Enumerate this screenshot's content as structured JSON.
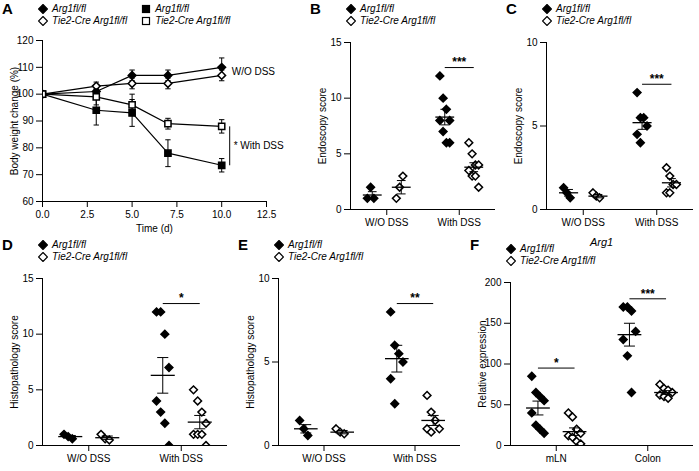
{
  "chart_data": [
    {
      "panel": "A",
      "type": "line",
      "xlabel": "Time (d)",
      "ylabel": "Body weight change (%)",
      "x": [
        0,
        3,
        5,
        7,
        10
      ],
      "xlim": [
        0,
        12.5
      ],
      "xticks": [
        {
          "value": 0,
          "label": "0.0"
        },
        2.5,
        {
          "value": 5,
          "label": "5.0"
        },
        7.5,
        {
          "value": 10,
          "label": "10.0"
        },
        12.5
      ],
      "ylim": [
        60,
        120
      ],
      "yticks": [
        60,
        70,
        80,
        90,
        100,
        110,
        120
      ],
      "series": [
        {
          "name": "Arg1fl/fl",
          "color": "#000000",
          "marker": "diamond",
          "values": [
            100,
            101,
            107,
            107,
            110
          ],
          "errors": [
            0,
            1.5,
            2,
            2,
            3.5
          ]
        },
        {
          "name": "Tie2-Cre Arg1fl/fl",
          "color": "#000000",
          "marker": "diamond-open",
          "values": [
            100,
            103,
            104,
            104,
            107
          ],
          "errors": [
            0,
            1.5,
            2,
            2,
            2
          ]
        },
        {
          "name": "Arg1fl/fl",
          "color": "#000000",
          "marker": "square",
          "values": [
            100,
            94,
            93,
            78,
            73.5
          ],
          "errors": [
            0,
            5.5,
            5,
            5,
            2.5
          ]
        },
        {
          "name": "Tie2-Cre Arg1fl/fl",
          "color": "#000000",
          "marker": "square-open",
          "values": [
            100,
            99,
            96,
            89,
            88
          ],
          "errors": [
            0,
            3,
            4,
            2,
            2.5
          ]
        }
      ],
      "annotations": [
        "W/O DSS",
        "* With DSS"
      ]
    },
    {
      "panel": "B",
      "type": "scatter",
      "ylabel": "Endoscopy score",
      "categories": [
        "W/O DSS",
        "With DSS"
      ],
      "ylim": [
        0,
        15
      ],
      "yticks": [
        0,
        5,
        10,
        15
      ],
      "series": [
        {
          "name": "Arg1fl/fl",
          "color": "#000000",
          "marker": "diamond",
          "values": [
            [
              1,
              2,
              1
            ],
            [
              12,
              10,
              9,
              8,
              8,
              7,
              6,
              6
            ]
          ],
          "mean": [
            1.3,
            8.3
          ],
          "sem": [
            0.3,
            0.7
          ]
        },
        {
          "name": "Tie2-Cre Arg1fl/fl",
          "color": "#000000",
          "marker": "diamond-open",
          "values": [
            [
              1,
              2,
              3
            ],
            [
              6,
              5,
              4,
              4,
              3.5,
              3,
              3,
              2
            ]
          ],
          "mean": [
            2,
            3.8
          ],
          "sem": [
            0.6,
            0.4
          ]
        }
      ],
      "significance": [
        null,
        "***"
      ]
    },
    {
      "panel": "C",
      "type": "scatter",
      "ylabel": "Endoscopy score",
      "categories": [
        "W/O DSS",
        "With DSS"
      ],
      "ylim": [
        0,
        10
      ],
      "yticks": [
        0,
        5,
        10
      ],
      "series": [
        {
          "name": "Arg1fl/fl",
          "color": "#000000",
          "marker": "diamond",
          "values": [
            [
              1.3,
              1,
              0.7
            ],
            [
              7,
              5.5,
              5.5,
              5,
              4.5,
              4
            ]
          ],
          "mean": [
            1,
            5.2
          ],
          "sem": [
            0.2,
            0.4
          ]
        },
        {
          "name": "Tie2-Cre Arg1fl/fl",
          "color": "#000000",
          "marker": "diamond-open",
          "values": [
            [
              1,
              0.8,
              0.7
            ],
            [
              2.5,
              2,
              1.5,
              1.5,
              1,
              1
            ]
          ],
          "mean": [
            0.8,
            1.6
          ],
          "sem": [
            0.1,
            0.25
          ]
        }
      ],
      "significance": [
        null,
        "***"
      ]
    },
    {
      "panel": "D",
      "type": "scatter",
      "ylabel": "Histopathology score",
      "categories": [
        "W/O DSS",
        "With DSS"
      ],
      "ylim": [
        0,
        15
      ],
      "yticks": [
        0,
        5,
        10,
        15
      ],
      "series": [
        {
          "name": "Arg1fl/fl",
          "color": "#000000",
          "marker": "diamond",
          "values": [
            [
              1,
              0.8,
              0.6
            ],
            [
              12,
              12,
              10,
              7,
              4,
              3,
              2,
              0
            ]
          ],
          "mean": [
            0.8,
            6.3
          ],
          "sem": [
            0.1,
            1.6
          ]
        },
        {
          "name": "Tie2-Cre Arg1fl/fl",
          "color": "#000000",
          "marker": "diamond-open",
          "values": [
            [
              1,
              0.6,
              0.5
            ],
            [
              5,
              4,
              3,
              2,
              1,
              1,
              1,
              0
            ]
          ],
          "mean": [
            0.7,
            2.1
          ],
          "sem": [
            0.15,
            0.6
          ]
        }
      ],
      "significance": [
        null,
        "*"
      ]
    },
    {
      "panel": "E",
      "type": "scatter",
      "ylabel": "Histopathology score",
      "categories": [
        "W/O DSS",
        "With DSS"
      ],
      "ylim": [
        0,
        10
      ],
      "yticks": [
        0,
        5,
        10
      ],
      "series": [
        {
          "name": "Arg1fl/fl",
          "color": "#000000",
          "marker": "diamond",
          "values": [
            [
              1.5,
              1,
              0.6
            ],
            [
              8,
              6,
              5.5,
              5,
              4,
              2.5
            ]
          ],
          "mean": [
            1,
            5.2
          ],
          "sem": [
            0.25,
            0.8
          ]
        },
        {
          "name": "Tie2-Cre Arg1fl/fl",
          "color": "#000000",
          "marker": "diamond-open",
          "values": [
            [
              1,
              0.8,
              0.7
            ],
            [
              3,
              2,
              1.5,
              1,
              1,
              0.8
            ]
          ],
          "mean": [
            0.8,
            1.5
          ],
          "sem": [
            0.1,
            0.3
          ]
        }
      ],
      "significance": [
        null,
        "**"
      ]
    },
    {
      "panel": "F",
      "type": "scatter",
      "title": "Arg1",
      "ylabel": "Relative expression",
      "categories": [
        "mLN",
        "Colon"
      ],
      "ylim": [
        0,
        200
      ],
      "yticks": [
        0,
        50,
        100,
        150,
        200
      ],
      "series": [
        {
          "name": "Arg1fl/fl",
          "color": "#000000",
          "marker": "diamond",
          "values": [
            [
              85,
              65,
              60,
              55,
              40,
              25,
              20,
              15
            ],
            [
              170,
              170,
              165,
              140,
              130,
              110,
              65
            ]
          ],
          "mean": [
            46,
            136
          ],
          "sem": [
            8.5,
            14
          ]
        },
        {
          "name": "Tie2-Cre Arg1fl/fl",
          "color": "#000000",
          "marker": "diamond-open",
          "values": [
            [
              40,
              35,
              20,
              15,
              12,
              10,
              5,
              2
            ],
            [
              75,
              70,
              68,
              65,
              62,
              60,
              58
            ]
          ],
          "mean": [
            17,
            65
          ],
          "sem": [
            4.6,
            2.3
          ]
        }
      ],
      "significance": [
        "*",
        "***"
      ]
    }
  ]
}
